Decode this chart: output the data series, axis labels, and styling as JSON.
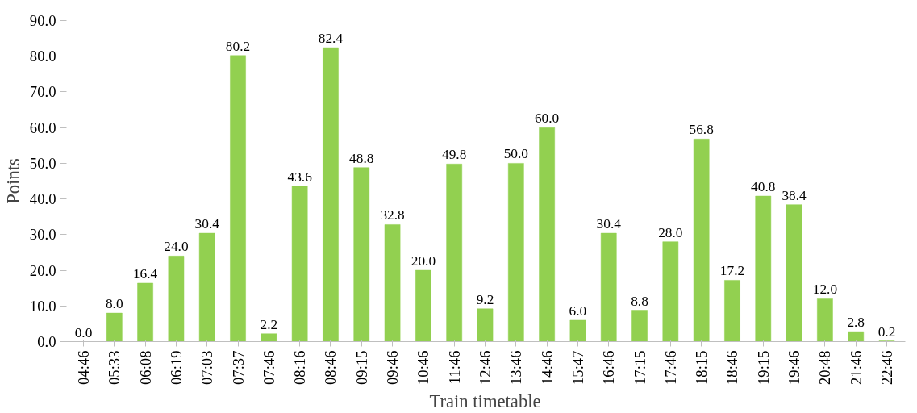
{
  "chart_data": {
    "type": "bar",
    "xlabel": "Train timetable",
    "ylabel": "Points",
    "categories": [
      "04:46",
      "05:33",
      "06:08",
      "06:19",
      "07:03",
      "07:37",
      "07:46",
      "08:16",
      "08:46",
      "09:15",
      "09:46",
      "10:46",
      "11:46",
      "12:46",
      "13:46",
      "14:46",
      "15:47",
      "16:46",
      "17:15",
      "17:46",
      "18:15",
      "18:46",
      "19:15",
      "19:46",
      "20:48",
      "21:46",
      "22:46"
    ],
    "values": [
      0.0,
      8.0,
      16.4,
      24.0,
      30.4,
      80.2,
      2.2,
      43.6,
      82.4,
      48.8,
      32.8,
      20.0,
      49.8,
      9.2,
      50.0,
      60.0,
      6.0,
      30.4,
      8.8,
      28.0,
      56.8,
      17.2,
      40.8,
      38.4,
      12.0,
      2.8,
      0.2
    ],
    "value_labels": [
      "0.0",
      "8.0",
      "16.4",
      "24.0",
      "30.4",
      "80.2",
      "2.2",
      "43.6",
      "82.4",
      "48.8",
      "32.8",
      "20.0",
      "49.8",
      "9.2",
      "50.0",
      "60.0",
      "6.0",
      "30.4",
      "8.8",
      "28.0",
      "56.8",
      "17.2",
      "40.8",
      "38.4",
      "12.0",
      "2.8",
      "0.2"
    ],
    "color": "#92d050",
    "ylim": [
      0,
      90
    ],
    "yticks": [
      {
        "value": 0,
        "label": "0.0"
      },
      {
        "value": 10,
        "label": "10.0"
      },
      {
        "value": 20,
        "label": "20.0"
      },
      {
        "value": 30,
        "label": "30.0"
      },
      {
        "value": 40,
        "label": "40.0"
      },
      {
        "value": 50,
        "label": "50.0"
      },
      {
        "value": 60,
        "label": "60.0"
      },
      {
        "value": 70,
        "label": "70.0"
      },
      {
        "value": 80,
        "label": "80.0"
      },
      {
        "value": 90,
        "label": "90.0"
      }
    ],
    "grid": false
  }
}
